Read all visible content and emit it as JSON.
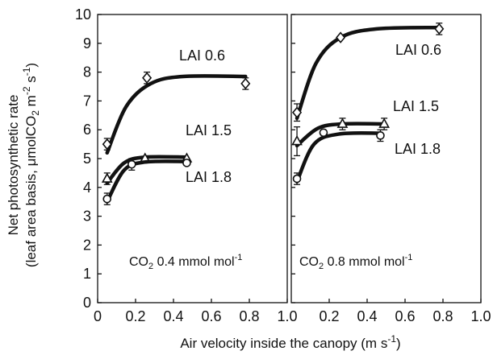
{
  "chart_data": {
    "type": "scatter",
    "ylabel_line1": "Net photosynthetic rate",
    "ylabel_line2": "(leaf area basis, μmolCO",
    "ylabel_sub": "2",
    "ylabel_rest": " m",
    "ylabel_sup1": "-2",
    "ylabel_s": " s",
    "ylabel_sup2": "-1",
    "ylabel_close": ")",
    "xlabel": "Air velocity inside the canopy (m s",
    "xlabel_sup": "-1",
    "xlabel_close": ")",
    "ylim": [
      0,
      10
    ],
    "xlim": [
      0,
      1.0
    ],
    "y_ticks": [
      "0",
      "1",
      "2",
      "3",
      "4",
      "5",
      "6",
      "7",
      "8",
      "9",
      "10"
    ],
    "x_ticks": [
      "0",
      "0.2",
      "0.4",
      "0.6",
      "0.8",
      "1.0"
    ],
    "x_ticks_right": [
      "0.2",
      "0.4",
      "0.6",
      "0.8",
      "1.0"
    ],
    "panels": [
      {
        "condition_prefix": "CO",
        "condition_sub": "2",
        "condition_rest": " 0.4 mmol mol",
        "condition_sup": "-1",
        "series": [
          {
            "name": "LAI  0.6",
            "marker": "diamond",
            "x": [
              0.05,
              0.26,
              0.78
            ],
            "y": [
              5.5,
              7.8,
              7.6
            ],
            "err": [
              0.2,
              0.2,
              0.2
            ],
            "curve": [
              [
                0.05,
                5.2
              ],
              [
                0.15,
                6.8
              ],
              [
                0.28,
                7.6
              ],
              [
                0.45,
                7.85
              ],
              [
                0.78,
                7.85
              ]
            ]
          },
          {
            "name": "LAI  1.5",
            "marker": "triangle",
            "x": [
              0.05,
              0.25,
              0.47
            ],
            "y": [
              4.3,
              5.0,
              5.0
            ],
            "err": [
              0.2,
              0.0,
              0.0
            ],
            "curve": [
              [
                0.05,
                4.15
              ],
              [
                0.14,
                4.85
              ],
              [
                0.25,
                5.05
              ],
              [
                0.47,
                5.05
              ]
            ]
          },
          {
            "name": "LAI  1.8",
            "marker": "circle",
            "x": [
              0.05,
              0.18,
              0.47
            ],
            "y": [
              3.6,
              4.8,
              4.85
            ],
            "err": [
              0.2,
              0.2,
              0.0
            ],
            "curve": [
              [
                0.05,
                3.5
              ],
              [
                0.14,
                4.6
              ],
              [
                0.25,
                4.88
              ],
              [
                0.47,
                4.9
              ]
            ]
          }
        ]
      },
      {
        "condition_prefix": "CO",
        "condition_sub": "2",
        "condition_rest": " 0.8 mmol mol",
        "condition_sup": "-1",
        "series": [
          {
            "name": "LAI  0.6",
            "marker": "diamond",
            "x": [
              0.03,
              0.26,
              0.78
            ],
            "y": [
              6.6,
              9.2,
              9.5
            ],
            "err": [
              0.3,
              0.0,
              0.2
            ],
            "curve": [
              [
                0.03,
                6.4
              ],
              [
                0.13,
                8.3
              ],
              [
                0.26,
                9.2
              ],
              [
                0.45,
                9.5
              ],
              [
                0.78,
                9.55
              ]
            ]
          },
          {
            "name": "LAI  1.5",
            "marker": "triangle",
            "x": [
              0.03,
              0.27,
              0.49
            ],
            "y": [
              5.6,
              6.2,
              6.2
            ],
            "err": [
              0.5,
              0.2,
              0.2
            ],
            "curve": [
              [
                0.03,
                5.45
              ],
              [
                0.14,
                6.05
              ],
              [
                0.27,
                6.2
              ],
              [
                0.49,
                6.2
              ]
            ]
          },
          {
            "name": "LAI  1.8",
            "marker": "circle",
            "x": [
              0.03,
              0.17,
              0.47
            ],
            "y": [
              4.3,
              5.9,
              5.8
            ],
            "err": [
              0.2,
              0.0,
              0.2
            ],
            "curve": [
              [
                0.03,
                4.2
              ],
              [
                0.12,
                5.5
              ],
              [
                0.25,
                5.85
              ],
              [
                0.47,
                5.88
              ]
            ]
          }
        ]
      }
    ]
  }
}
